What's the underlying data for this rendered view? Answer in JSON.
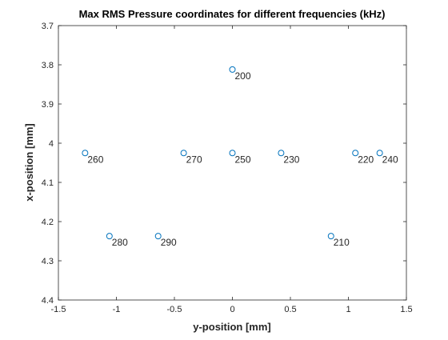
{
  "chart_data": {
    "type": "scatter",
    "title": "Max RMS Pressure coordinates for different frequencies (kHz)",
    "xlabel": "y-position [mm]",
    "ylabel": "x-position [mm]",
    "xlim": [
      -1.5,
      1.5
    ],
    "ylim": [
      3.7,
      4.4
    ],
    "y_reversed": true,
    "grid": false,
    "legend": "none",
    "marker_color": "#0072BD",
    "xticks": [
      -1.5,
      -1,
      -0.5,
      0,
      0.5,
      1,
      1.5
    ],
    "xtick_labels": [
      "-1.5",
      "-1",
      "-0.5",
      "0",
      "0.5",
      "1",
      "1.5"
    ],
    "yticks": [
      3.7,
      3.8,
      3.9,
      4.0,
      4.1,
      4.2,
      4.3,
      4.4
    ],
    "ytick_labels": [
      "3.7",
      "3.8",
      "3.9",
      "4",
      "4.1",
      "4.2",
      "4.3",
      "4.4"
    ],
    "points": [
      {
        "x": 0.0,
        "y": 3.812,
        "label": "200"
      },
      {
        "x": -1.27,
        "y": 4.025,
        "label": "260"
      },
      {
        "x": -0.42,
        "y": 4.025,
        "label": "270"
      },
      {
        "x": 0.0,
        "y": 4.025,
        "label": "250"
      },
      {
        "x": 0.42,
        "y": 4.025,
        "label": "230"
      },
      {
        "x": 1.06,
        "y": 4.025,
        "label": "220"
      },
      {
        "x": 1.27,
        "y": 4.025,
        "label": "240"
      },
      {
        "x": -1.06,
        "y": 4.237,
        "label": "280"
      },
      {
        "x": -0.64,
        "y": 4.237,
        "label": "290"
      },
      {
        "x": 0.85,
        "y": 4.237,
        "label": "210"
      }
    ]
  }
}
